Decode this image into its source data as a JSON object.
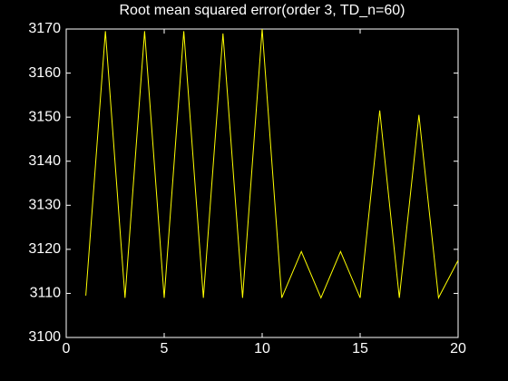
{
  "chart_data": {
    "type": "line",
    "title": "Root mean squared error(order 3, TD_n=60)",
    "x": [
      1,
      2,
      3,
      4,
      5,
      6,
      7,
      8,
      9,
      10,
      11,
      12,
      13,
      14,
      15,
      16,
      17,
      18,
      19,
      20
    ],
    "series": [
      {
        "color": "#ffff00",
        "values": [
          3109.5,
          3169.5,
          3109,
          3169.5,
          3109,
          3169.5,
          3109,
          3169,
          3109,
          3170,
          3109,
          3119.5,
          3109,
          3119.5,
          3109,
          3151.5,
          3109,
          3150.5,
          3109,
          3117.5
        ]
      }
    ],
    "xlim": [
      0,
      20
    ],
    "xticks": [
      0,
      5,
      10,
      15,
      20
    ],
    "ylim": [
      3100,
      3170
    ],
    "yticks": [
      3100,
      3110,
      3120,
      3130,
      3140,
      3150,
      3160,
      3170
    ],
    "grid": false
  }
}
